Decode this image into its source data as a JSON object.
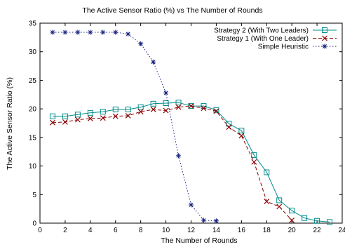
{
  "chart_data": {
    "type": "line",
    "title": "The Active Sensor Ratio (%) vs The Number of Rounds",
    "xlabel": "The Number of Rounds",
    "ylabel": "The Active Sensor Ratio (%)",
    "xlim": [
      0,
      24
    ],
    "ylim": [
      0,
      35
    ],
    "xticks": [
      0,
      2,
      4,
      6,
      8,
      10,
      12,
      14,
      16,
      18,
      20,
      22,
      24
    ],
    "yticks": [
      0,
      5,
      10,
      15,
      20,
      25,
      30,
      35
    ],
    "grid": false,
    "legend_position": "top-right",
    "series": [
      {
        "name": "Strategy 2 (With Two Leaders)",
        "color": "#008b8b",
        "marker": "square",
        "line_style": "solid",
        "x": [
          1,
          2,
          3,
          4,
          5,
          6,
          7,
          8,
          9,
          10,
          11,
          12,
          13,
          14,
          15,
          16,
          17,
          18,
          19,
          20,
          21,
          22,
          23
        ],
        "y": [
          18.7,
          18.7,
          19.0,
          19.3,
          19.5,
          19.9,
          19.9,
          20.3,
          20.9,
          21.0,
          21.1,
          20.5,
          20.5,
          19.8,
          17.4,
          16.2,
          11.9,
          8.9,
          4.0,
          2.2,
          0.9,
          0.4,
          0.2
        ]
      },
      {
        "name": "Strategy 1 (With One Leader)",
        "color": "#8b0000",
        "marker": "x",
        "line_style": "dashed",
        "x": [
          1,
          2,
          3,
          4,
          5,
          6,
          7,
          8,
          9,
          10,
          11,
          12,
          13,
          14,
          15,
          16,
          17,
          18,
          19,
          20
        ],
        "y": [
          17.6,
          17.7,
          18.1,
          18.3,
          18.4,
          18.7,
          18.8,
          19.5,
          19.9,
          19.7,
          20.3,
          20.5,
          20.1,
          19.6,
          16.8,
          15.3,
          10.7,
          3.8,
          2.9,
          0.5
        ]
      },
      {
        "name": "Simple Heuristic",
        "color": "#1a237e",
        "marker": "asterisk",
        "line_style": "dotted",
        "x": [
          1,
          2,
          3,
          4,
          5,
          6,
          7,
          8,
          9,
          10,
          11,
          12,
          13,
          14
        ],
        "y": [
          33.4,
          33.4,
          33.4,
          33.4,
          33.4,
          33.4,
          33.1,
          31.4,
          28.2,
          22.8,
          11.8,
          3.2,
          0.5,
          0.4
        ]
      }
    ]
  }
}
